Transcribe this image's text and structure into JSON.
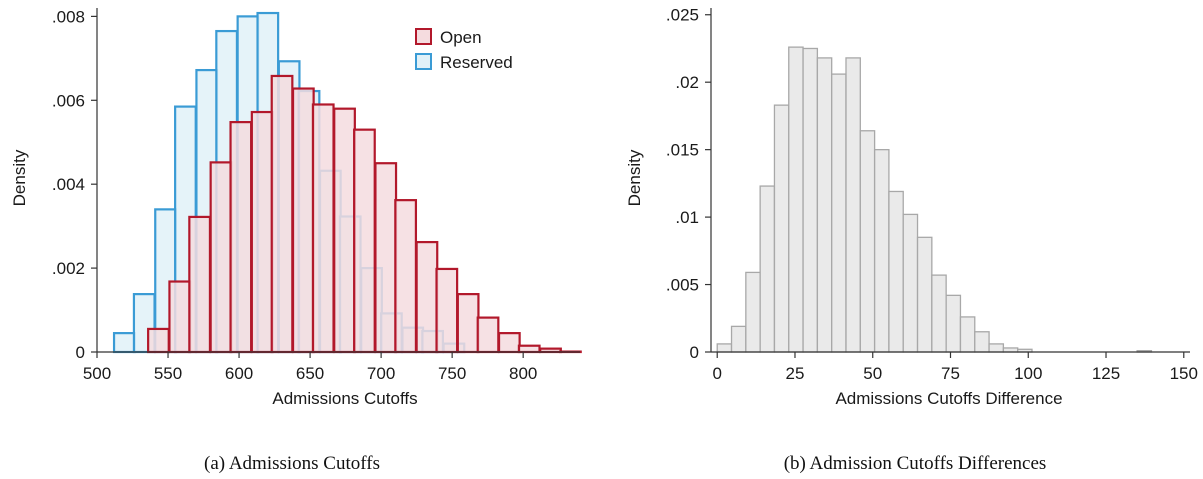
{
  "chart_data": [
    {
      "type": "bar",
      "xlabel": "Admissions Cutoffs",
      "ylabel": "Density",
      "caption": "(a)  Admissions Cutoffs",
      "xlim": [
        500,
        840
      ],
      "ylim": [
        0,
        0.0082
      ],
      "x_ticks": [
        {
          "value": 500,
          "label": "500"
        },
        {
          "value": 550,
          "label": "550"
        },
        {
          "value": 600,
          "label": "600"
        },
        {
          "value": 650,
          "label": "650"
        },
        {
          "value": 700,
          "label": "700"
        },
        {
          "value": 750,
          "label": "750"
        },
        {
          "value": 800,
          "label": "800"
        }
      ],
      "y_ticks": [
        {
          "value": 0,
          "label": "0"
        },
        {
          "value": 0.002,
          "label": ".002"
        },
        {
          "value": 0.004,
          "label": ".004"
        },
        {
          "value": 0.006,
          "label": ".006"
        },
        {
          "value": 0.008,
          "label": ".008"
        }
      ],
      "legend_position": "top-right",
      "series": [
        {
          "name": "Open",
          "color": "#b2182b",
          "fill": "#f5dcdf",
          "bin_starts": [
            536,
            551,
            565,
            580,
            594,
            609,
            623,
            638,
            652,
            667,
            681,
            696,
            710,
            725,
            739,
            754,
            768,
            783,
            797,
            812,
            826
          ],
          "bin_width": 14.5,
          "values": [
            0.00055,
            0.00168,
            0.00322,
            0.00452,
            0.00548,
            0.00572,
            0.00658,
            0.00628,
            0.0059,
            0.0058,
            0.0053,
            0.0045,
            0.00362,
            0.00262,
            0.00198,
            0.00138,
            0.00082,
            0.00045,
            0.00015,
            8e-05,
            1e-05
          ]
        },
        {
          "name": "Reserved",
          "color": "#3a9bd5",
          "fill": "#e1f1f8",
          "bin_starts": [
            512,
            526,
            541,
            555,
            570,
            584,
            599,
            613,
            628,
            642,
            657,
            671,
            686,
            700,
            715,
            729,
            744,
            758
          ],
          "bin_width": 14.5,
          "values": [
            0.00045,
            0.00138,
            0.0034,
            0.00585,
            0.00672,
            0.00765,
            0.008,
            0.00808,
            0.00693,
            0.00622,
            0.00432,
            0.00323,
            0.002,
            0.00092,
            0.00058,
            0.0005,
            0.0002,
            0.0
          ]
        }
      ]
    },
    {
      "type": "bar",
      "xlabel": "Admissions Cutoffs Difference",
      "ylabel": "Density",
      "caption": "(b)  Admission Cutoffs Differences",
      "xlim": [
        -2,
        152
      ],
      "ylim": [
        0,
        0.0255
      ],
      "x_ticks": [
        {
          "value": 0,
          "label": "0"
        },
        {
          "value": 25,
          "label": "25"
        },
        {
          "value": 50,
          "label": "50"
        },
        {
          "value": 75,
          "label": "75"
        },
        {
          "value": 100,
          "label": "100"
        },
        {
          "value": 125,
          "label": "125"
        },
        {
          "value": 150,
          "label": "150"
        }
      ],
      "y_ticks": [
        {
          "value": 0,
          "label": "0"
        },
        {
          "value": 0.005,
          "label": ".005"
        },
        {
          "value": 0.01,
          "label": ".01"
        },
        {
          "value": 0.015,
          "label": ".015"
        },
        {
          "value": 0.02,
          "label": ".02"
        },
        {
          "value": 0.025,
          "label": ".025"
        }
      ],
      "series": [
        {
          "color": "#a8a8a8",
          "fill": "#e6e6e6",
          "bin_width": 4.6,
          "bin_starts": [
            0.0,
            4.6,
            9.2,
            13.8,
            18.4,
            23.0,
            27.6,
            32.2,
            36.8,
            41.4,
            46.0,
            50.6,
            55.2,
            59.8,
            64.4,
            69.0,
            73.6,
            78.2,
            82.8,
            87.4,
            92.0,
            96.6,
            135.0
          ],
          "values": [
            0.0006,
            0.0019,
            0.0059,
            0.0123,
            0.0183,
            0.0226,
            0.0225,
            0.0218,
            0.0206,
            0.0218,
            0.0164,
            0.015,
            0.0119,
            0.0102,
            0.0085,
            0.0057,
            0.0042,
            0.0026,
            0.0015,
            0.0006,
            0.0003,
            0.0002,
            0.0001
          ]
        }
      ]
    }
  ]
}
